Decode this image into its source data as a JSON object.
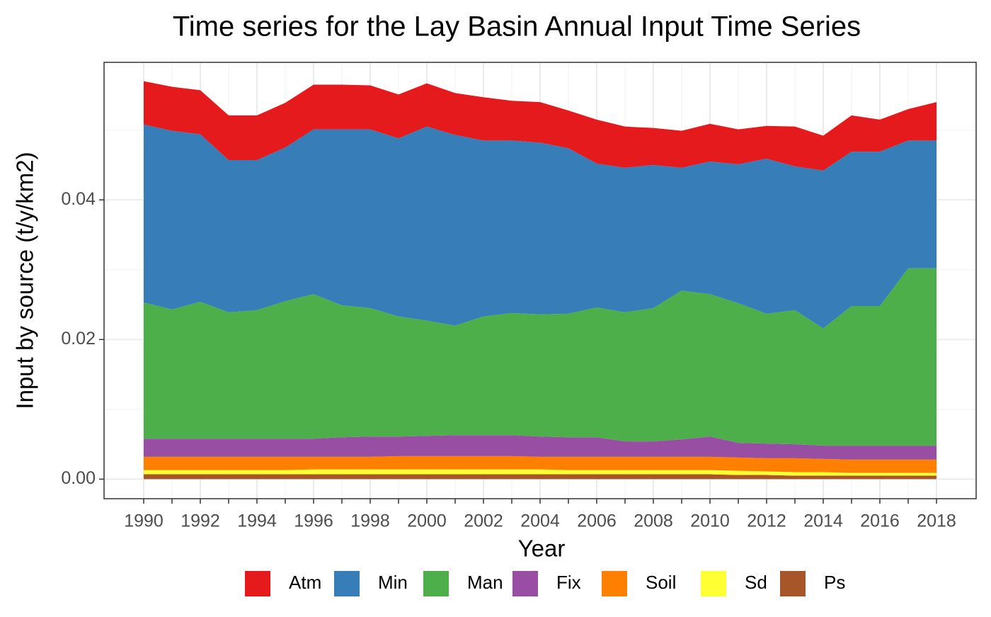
{
  "chart_data": {
    "type": "stacked_area",
    "title": "Time series for the Lay Basin Annual Input Time Series",
    "x_label": "Year",
    "y_label": "Input by source (t/y/km2)",
    "x": [
      1990,
      1991,
      1992,
      1993,
      1994,
      1995,
      1996,
      1997,
      1998,
      1999,
      2000,
      2001,
      2002,
      2003,
      2004,
      2005,
      2006,
      2007,
      2008,
      2009,
      2010,
      2011,
      2012,
      2013,
      2014,
      2015,
      2016,
      2017,
      2018
    ],
    "series": [
      {
        "name": "Atm",
        "color": "#e41a1c",
        "values": [
          0.0062,
          0.0063,
          0.0063,
          0.0064,
          0.0064,
          0.0064,
          0.0064,
          0.0064,
          0.0063,
          0.0063,
          0.0062,
          0.006,
          0.0062,
          0.0057,
          0.0058,
          0.0054,
          0.0063,
          0.0059,
          0.0053,
          0.0053,
          0.0054,
          0.005,
          0.0047,
          0.0057,
          0.005,
          0.0052,
          0.0046,
          0.0045,
          0.0055
        ]
      },
      {
        "name": "Min",
        "color": "#377eb8",
        "values": [
          0.0255,
          0.0256,
          0.024,
          0.0218,
          0.0215,
          0.022,
          0.0236,
          0.0252,
          0.0256,
          0.0255,
          0.0278,
          0.0273,
          0.0252,
          0.0247,
          0.0246,
          0.0237,
          0.0206,
          0.0207,
          0.0205,
          0.0176,
          0.019,
          0.0199,
          0.0222,
          0.0206,
          0.0226,
          0.0221,
          0.0221,
          0.0183,
          0.0183
        ]
      },
      {
        "name": "Man",
        "color": "#4daf4a",
        "values": [
          0.0195,
          0.0185,
          0.0196,
          0.0181,
          0.0184,
          0.0197,
          0.0207,
          0.0189,
          0.0184,
          0.0172,
          0.0165,
          0.0157,
          0.017,
          0.0175,
          0.0175,
          0.0177,
          0.0186,
          0.0185,
          0.0191,
          0.0213,
          0.0204,
          0.02,
          0.0186,
          0.0192,
          0.0168,
          0.02,
          0.02,
          0.0254,
          0.0254
        ]
      },
      {
        "name": "Fix",
        "color": "#984ea3",
        "values": [
          0.0026,
          0.0026,
          0.0026,
          0.0026,
          0.0026,
          0.0026,
          0.0026,
          0.0028,
          0.0029,
          0.0028,
          0.0029,
          0.003,
          0.003,
          0.003,
          0.0029,
          0.0028,
          0.0028,
          0.0022,
          0.0022,
          0.0025,
          0.0029,
          0.0021,
          0.0021,
          0.002,
          0.0019,
          0.002,
          0.002,
          0.002,
          0.002
        ]
      },
      {
        "name": "Soil",
        "color": "#ff7f00",
        "values": [
          0.0019,
          0.0019,
          0.0019,
          0.0019,
          0.0019,
          0.0019,
          0.0018,
          0.0018,
          0.0018,
          0.0019,
          0.0019,
          0.0019,
          0.0019,
          0.0019,
          0.0018,
          0.0019,
          0.0019,
          0.0019,
          0.0019,
          0.0019,
          0.0019,
          0.0019,
          0.0019,
          0.002,
          0.0019,
          0.0019,
          0.0019,
          0.0019,
          0.0019
        ]
      },
      {
        "name": "Sd",
        "color": "#ffff33",
        "values": [
          0.0006,
          0.0006,
          0.0006,
          0.0006,
          0.0006,
          0.0006,
          0.0007,
          0.0007,
          0.0007,
          0.0007,
          0.0007,
          0.0007,
          0.0007,
          0.0007,
          0.0007,
          0.0006,
          0.0006,
          0.0006,
          0.0006,
          0.0006,
          0.0006,
          0.0006,
          0.0005,
          0.0005,
          0.0005,
          0.0004,
          0.0004,
          0.0004,
          0.0004
        ]
      },
      {
        "name": "Ps",
        "color": "#a65628",
        "values": [
          0.0007,
          0.0007,
          0.0007,
          0.0007,
          0.0007,
          0.0007,
          0.0007,
          0.0007,
          0.0007,
          0.0007,
          0.0007,
          0.0007,
          0.0007,
          0.0007,
          0.0007,
          0.0007,
          0.0007,
          0.0007,
          0.0007,
          0.0007,
          0.0007,
          0.0006,
          0.0006,
          0.0005,
          0.0005,
          0.0005,
          0.0005,
          0.0005,
          0.0005
        ]
      }
    ],
    "xlim": [
      1988.6,
      2019.4
    ],
    "xticks": [
      1990,
      1992,
      1994,
      1996,
      1998,
      2000,
      2002,
      2004,
      2006,
      2008,
      2010,
      2012,
      2014,
      2016,
      2018
    ],
    "ylim": [
      -0.0028,
      0.0597
    ],
    "yticks": [
      {
        "value": 0,
        "label": "0.00"
      },
      {
        "value": 0.02,
        "label": "0.02"
      },
      {
        "value": 0.04,
        "label": "0.04"
      }
    ],
    "grid": true,
    "legend_position": "bottom"
  }
}
